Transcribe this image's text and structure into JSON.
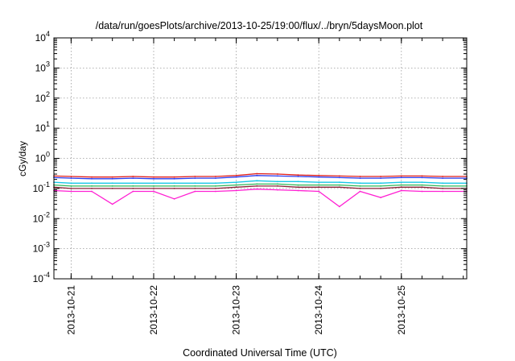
{
  "chart_data": {
    "type": "line",
    "title": "/data/run/goesPlots/archive/2013-10-25/19:00/flux/../bryn/5daysMoon.plot",
    "xlabel": "Coordinated Universal Time (UTC)",
    "ylabel": "cGy/day",
    "yscale": "log",
    "ylim": [
      0.0001,
      10000
    ],
    "xlim": [
      "2013-10-20 19:00",
      "2013-10-25 19:00"
    ],
    "grid": true,
    "legend": "none",
    "y_ticks": [
      {
        "base": "10",
        "exp": "-4",
        "value": 0.0001
      },
      {
        "base": "10",
        "exp": "-3",
        "value": 0.001
      },
      {
        "base": "10",
        "exp": "-2",
        "value": 0.01
      },
      {
        "base": "10",
        "exp": "-1",
        "value": 0.1
      },
      {
        "base": "10",
        "exp": "0",
        "value": 1
      },
      {
        "base": "10",
        "exp": "1",
        "value": 10
      },
      {
        "base": "10",
        "exp": "2",
        "value": 100
      },
      {
        "base": "10",
        "exp": "3",
        "value": 1000
      },
      {
        "base": "10",
        "exp": "4",
        "value": 10000
      }
    ],
    "x_ticks": [
      "2013-10-21",
      "2013-10-22",
      "2013-10-23",
      "2013-10-24",
      "2013-10-25"
    ],
    "x": [
      "2013-10-20 19:00",
      "2013-10-21 00:00",
      "2013-10-21 06:00",
      "2013-10-21 12:00",
      "2013-10-21 18:00",
      "2013-10-22 00:00",
      "2013-10-22 06:00",
      "2013-10-22 12:00",
      "2013-10-22 18:00",
      "2013-10-23 00:00",
      "2013-10-23 06:00",
      "2013-10-23 12:00",
      "2013-10-23 18:00",
      "2013-10-24 00:00",
      "2013-10-24 06:00",
      "2013-10-24 12:00",
      "2013-10-24 18:00",
      "2013-10-25 00:00",
      "2013-10-25 06:00",
      "2013-10-25 12:00",
      "2013-10-25 19:00"
    ],
    "series": [
      {
        "color": "#e0201b",
        "values": [
          0.26,
          0.25,
          0.24,
          0.24,
          0.25,
          0.24,
          0.24,
          0.25,
          0.25,
          0.27,
          0.31,
          0.3,
          0.28,
          0.27,
          0.26,
          0.25,
          0.25,
          0.26,
          0.26,
          0.25,
          0.25
        ]
      },
      {
        "color": "#2a3cf0",
        "values": [
          0.23,
          0.22,
          0.21,
          0.21,
          0.22,
          0.21,
          0.21,
          0.22,
          0.22,
          0.24,
          0.27,
          0.26,
          0.25,
          0.24,
          0.23,
          0.22,
          0.22,
          0.23,
          0.23,
          0.22,
          0.22
        ]
      },
      {
        "color": "#17c6e6",
        "values": [
          0.16,
          0.15,
          0.15,
          0.15,
          0.15,
          0.15,
          0.15,
          0.15,
          0.15,
          0.16,
          0.18,
          0.17,
          0.17,
          0.16,
          0.16,
          0.15,
          0.15,
          0.16,
          0.16,
          0.15,
          0.15
        ]
      },
      {
        "color": "#2fb85a",
        "values": [
          0.13,
          0.12,
          0.12,
          0.12,
          0.12,
          0.12,
          0.12,
          0.12,
          0.12,
          0.13,
          0.14,
          0.14,
          0.13,
          0.13,
          0.13,
          0.12,
          0.12,
          0.13,
          0.13,
          0.12,
          0.12
        ]
      },
      {
        "color": "#8a2238",
        "values": [
          0.11,
          0.1,
          0.1,
          0.1,
          0.1,
          0.1,
          0.1,
          0.1,
          0.1,
          0.11,
          0.12,
          0.12,
          0.11,
          0.11,
          0.11,
          0.1,
          0.1,
          0.11,
          0.11,
          0.1,
          0.1
        ]
      },
      {
        "color": "#ff1fd2",
        "values": [
          0.085,
          0.08,
          0.08,
          0.03,
          0.08,
          0.08,
          0.045,
          0.08,
          0.08,
          0.085,
          0.095,
          0.09,
          0.085,
          0.08,
          0.025,
          0.08,
          0.05,
          0.085,
          0.08,
          0.08,
          0.08
        ]
      }
    ]
  }
}
